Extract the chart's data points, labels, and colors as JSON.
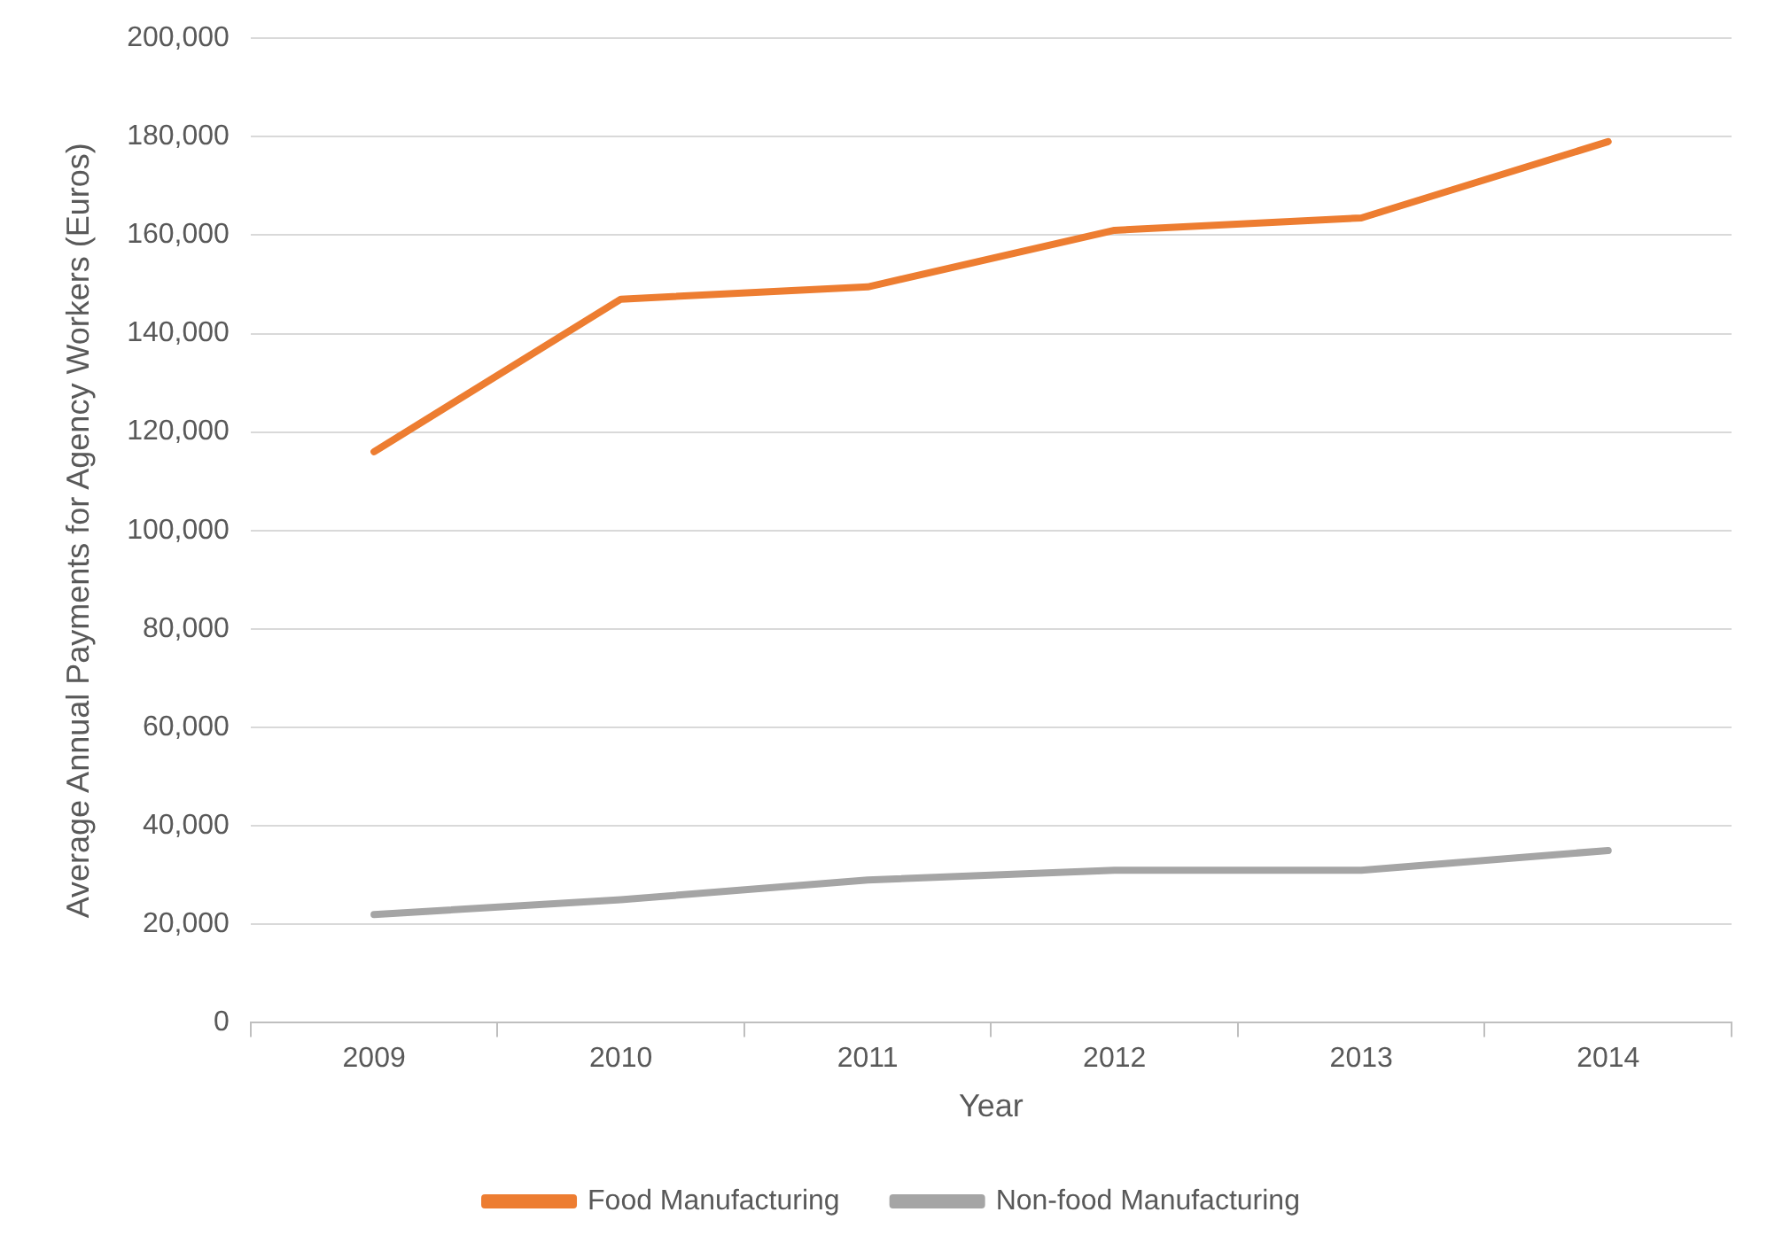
{
  "chart_data": {
    "type": "line",
    "xlabel": "Year",
    "ylabel": "Average Annual Payments for Agency Workers (Euros)",
    "categories": [
      "2009",
      "2010",
      "2011",
      "2012",
      "2013",
      "2014"
    ],
    "series": [
      {
        "name": "Food Manufacturing",
        "color": "#ed7d31",
        "values": [
          116000,
          147000,
          149500,
          161000,
          163500,
          179000
        ]
      },
      {
        "name": "Non-food Manufacturing",
        "color": "#a5a5a5",
        "values": [
          22000,
          25000,
          29000,
          31000,
          31000,
          35000
        ]
      }
    ],
    "ylim": [
      0,
      200000
    ],
    "yticks": [
      0,
      {
        "value": 20000,
        "label": "20,000"
      },
      {
        "value": 40000,
        "label": "40,000"
      },
      {
        "value": 60000,
        "label": "60,000"
      },
      {
        "value": 80000,
        "label": "80,000"
      },
      {
        "value": 100000,
        "label": "100,000"
      },
      {
        "value": 120000,
        "label": "120,000"
      },
      {
        "value": 140000,
        "label": "140,000"
      },
      {
        "value": 160000,
        "label": "160,000"
      },
      {
        "value": 180000,
        "label": "180,000"
      },
      {
        "value": 200000,
        "label": "200,000"
      }
    ],
    "grid": "y",
    "legend": "bottom",
    "marker": "none",
    "line_style": "solid"
  }
}
